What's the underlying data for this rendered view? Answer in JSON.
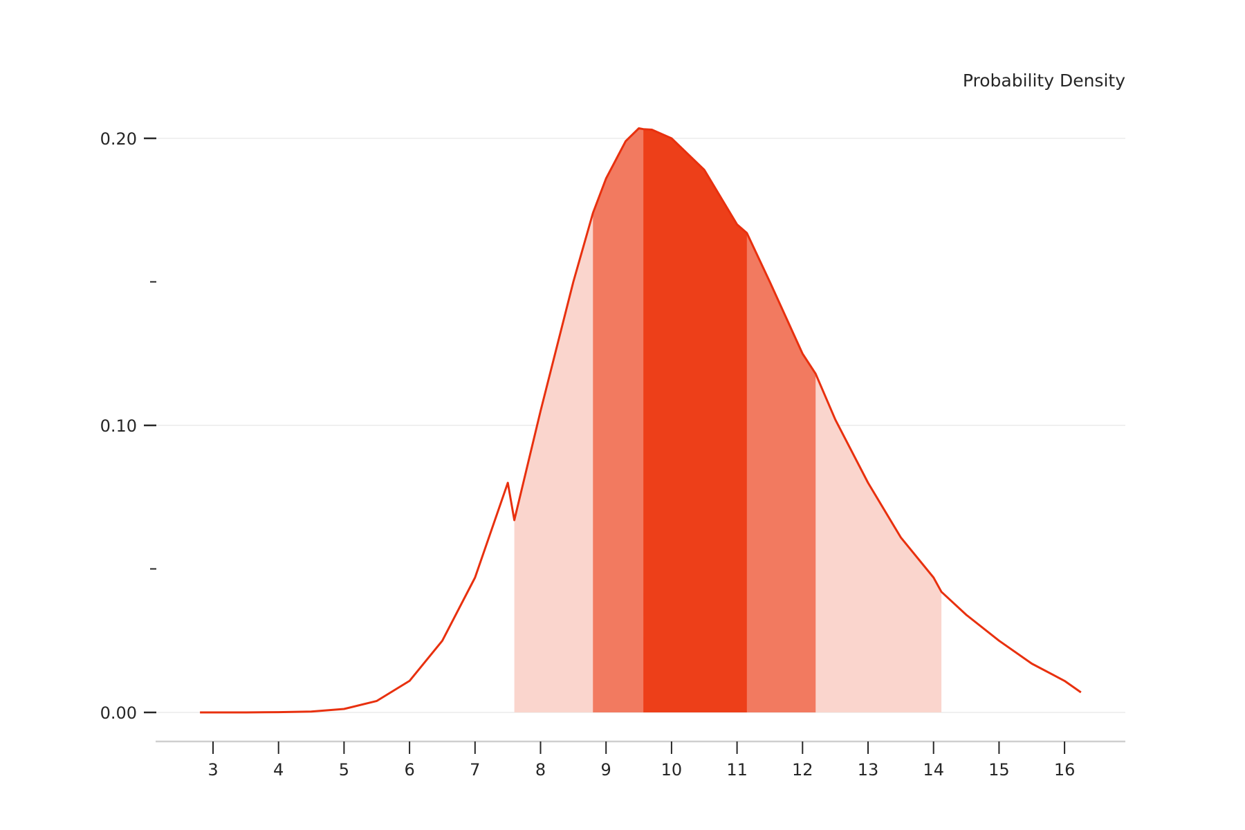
{
  "chart_data": {
    "type": "area",
    "title": "",
    "xlabel": "",
    "ylabel": "Probability Density",
    "xlim": [
      2.0,
      16.9
    ],
    "ylim": [
      -0.02,
      0.21
    ],
    "x_ticks": [
      3,
      4,
      5,
      6,
      7,
      8,
      9,
      10,
      11,
      12,
      13,
      14,
      15,
      16
    ],
    "y_ticks": [
      0.0,
      0.05,
      0.1,
      0.15,
      0.2
    ],
    "y_tick_labels": [
      "0.00",
      "",
      "0.10",
      "",
      "0.20"
    ],
    "grid": "horizontal",
    "curve": {
      "x": [
        2.8,
        3.5,
        4.0,
        4.5,
        5.0,
        5.5,
        6.0,
        6.5,
        7.0,
        7.5,
        7.6,
        8.0,
        8.5,
        8.8,
        9.0,
        9.3,
        9.5,
        9.57,
        9.7,
        10.0,
        10.5,
        11.0,
        11.15,
        11.5,
        12.0,
        12.2,
        12.5,
        13.0,
        13.5,
        14.0,
        14.12,
        14.5,
        15.0,
        15.5,
        16.0,
        16.25
      ],
      "y": [
        0.0,
        0.0,
        0.0001,
        0.0003,
        0.0012,
        0.004,
        0.011,
        0.025,
        0.047,
        0.08,
        0.067,
        0.105,
        0.15,
        0.174,
        0.186,
        0.199,
        0.2035,
        0.2032,
        0.203,
        0.2,
        0.189,
        0.17,
        0.167,
        0.15,
        0.125,
        0.118,
        0.102,
        0.08,
        0.061,
        0.047,
        0.042,
        0.034,
        0.025,
        0.017,
        0.011,
        0.007
      ]
    },
    "bands": [
      {
        "level": "outer",
        "x_range": [
          7.6,
          14.12
        ],
        "color": "#fad5cd"
      },
      {
        "level": "middle",
        "x_range": [
          8.8,
          12.2
        ],
        "color": "#f27a60"
      },
      {
        "level": "inner",
        "x_range": [
          9.57,
          11.15
        ],
        "color": "#ed3f19"
      }
    ],
    "line_color": "#e8300e"
  }
}
